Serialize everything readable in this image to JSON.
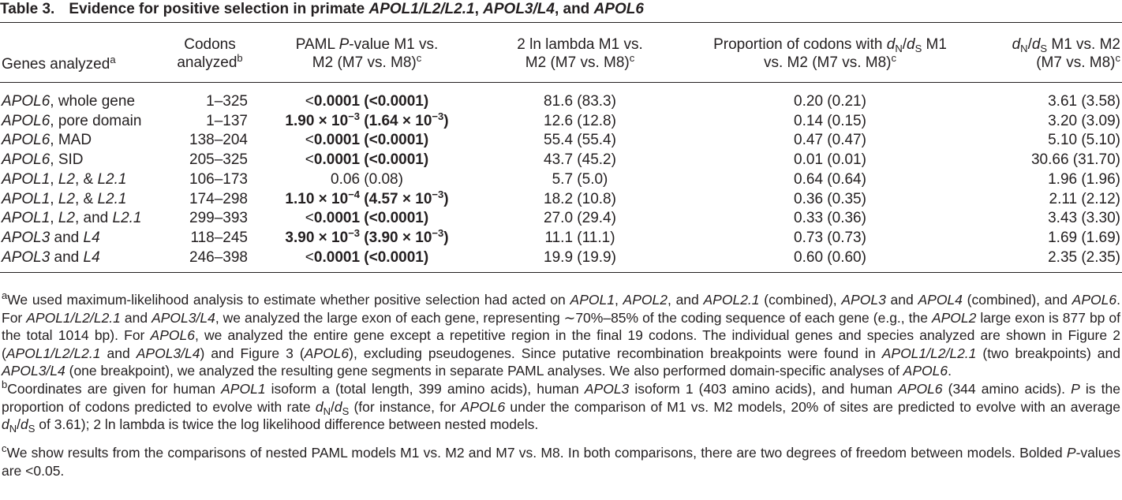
{
  "table": {
    "label": "Table 3.",
    "title_parts": [
      "Evidence for positive selection in primate ",
      "APOL1/L2/L2.1",
      ", ",
      "APOL3/L4",
      ", and ",
      "APOL6"
    ],
    "headers": {
      "genes": "Genes analyzed",
      "genes_note": "a",
      "codons_l1": "Codons",
      "codons_l2": "analyzed",
      "codons_note": "b",
      "pval_l1a": "PAML ",
      "pval_l1b": "P",
      "pval_l1c": "-value M1 vs.",
      "pval_l2": "M2 (M7 vs. M8)",
      "pval_note": "c",
      "lambda_l1": "2 ln lambda M1 vs.",
      "lambda_l2": "M2 (M7 vs. M8)",
      "lambda_note": "c",
      "prop_l1a": "Proportion of codons with ",
      "prop_l1b": "d",
      "prop_l1c": "N",
      "prop_l1d": "/",
      "prop_l1e": "d",
      "prop_l1f": "S",
      "prop_l1g": " M1",
      "prop_l2": "vs. M2 (M7 vs. M8)",
      "prop_note": "c",
      "dnds_l1a": "d",
      "dnds_l1b": "N",
      "dnds_l1c": "/",
      "dnds_l1d": "d",
      "dnds_l1e": "S",
      "dnds_l1f": " M1 vs. M2",
      "dnds_l2": "(M7 vs. M8)",
      "dnds_note": "c"
    },
    "rows": [
      {
        "gene_i": "APOL6",
        "gene_rest": ", whole gene",
        "codons": "1–325",
        "p_lt": "<",
        "p_a": "0.0001",
        "p_mid": " (<",
        "p_b": "0.0001",
        "p_end": ")",
        "lambda": "81.6 (83.3)",
        "prop": "0.20 (0.21)",
        "dnds": "3.61 (3.58)"
      },
      {
        "gene_i": "APOL6",
        "gene_rest": ", pore domain",
        "codons": "1–137",
        "p_sci": true,
        "p_m1": "1.90 × 10",
        "p_e1": "−3",
        "p_m2": " (1.64 × 10",
        "p_e2": "−3",
        "p_close": ")",
        "lambda": "12.6 (12.8)",
        "prop": "0.14 (0.15)",
        "dnds": "3.20 (3.09)"
      },
      {
        "gene_i": "APOL6",
        "gene_rest": ", MAD",
        "codons": "138–204",
        "p_lt": "<",
        "p_a": "0.0001",
        "p_mid": " (<",
        "p_b": "0.0001",
        "p_end": ")",
        "lambda": "55.4 (55.4)",
        "prop": "0.47 (0.47)",
        "dnds": "5.10 (5.10)"
      },
      {
        "gene_i": "APOL6",
        "gene_rest": ", SID",
        "codons": "205–325",
        "p_lt": "<",
        "p_a": "0.0001",
        "p_mid": " (<",
        "p_b": "0.0001",
        "p_end": ")",
        "lambda": "43.7 (45.2)",
        "prop": "0.01 (0.01)",
        "dnds": "30.66 (31.70)"
      },
      {
        "gene_i": "APOL1",
        "gene_rest": ", ",
        "gene_i2": "L2",
        "gene_rest2": ", & ",
        "gene_i3": "L2.1",
        "codons": "106–173",
        "p_plain": "0.06 (0.08)",
        "lambda": "5.7 (5.0)",
        "prop": "0.64 (0.64)",
        "dnds": "1.96 (1.96)"
      },
      {
        "gene_i": "APOL1",
        "gene_rest": ", ",
        "gene_i2": "L2",
        "gene_rest2": ", & ",
        "gene_i3": "L2.1",
        "codons": "174–298",
        "p_sci": true,
        "p_m1": "1.10 × 10",
        "p_e1": "−4",
        "p_m2": " (4.57 × 10",
        "p_e2": "−3",
        "p_close": ")",
        "lambda": "18.2 (10.8)",
        "prop": "0.36 (0.35)",
        "dnds": "2.11 (2.12)"
      },
      {
        "gene_i": "APOL1",
        "gene_rest": ", ",
        "gene_i2": "L2",
        "gene_rest2": ", and ",
        "gene_i3": "L2.1",
        "codons": "299–393",
        "p_lt": "<",
        "p_a": "0.0001",
        "p_mid": " (<",
        "p_b": "0.0001",
        "p_end": ")",
        "lambda": "27.0 (29.4)",
        "prop": "0.33 (0.36)",
        "dnds": "3.43 (3.30)"
      },
      {
        "gene_i": "APOL3",
        "gene_rest": " and ",
        "gene_i2": "L4",
        "codons": "118–245",
        "p_sci": true,
        "p_m1": "3.90 × 10",
        "p_e1": "−3",
        "p_m2": " (3.90 × 10",
        "p_e2": "−3",
        "p_close": ")",
        "lambda": "11.1 (11.1)",
        "prop": "0.73 (0.73)",
        "dnds": "1.69 (1.69)"
      },
      {
        "gene_i": "APOL3",
        "gene_rest": " and ",
        "gene_i2": "L4",
        "codons": "246–398",
        "p_lt": "<",
        "p_a": "0.0001",
        "p_mid": " (<",
        "p_b": "0.0001",
        "p_end": ")",
        "lambda": "19.9 (19.9)",
        "prop": "0.60 (0.60)",
        "dnds": "2.35 (2.35)"
      }
    ]
  },
  "footnotes": {
    "a": {
      "mark": "a",
      "segments": [
        [
          "We used maximum-likelihood analysis to estimate whether positive selection had acted on ",
          false
        ],
        [
          "APOL1",
          true
        ],
        [
          ", ",
          false
        ],
        [
          "APOL2",
          true
        ],
        [
          ", and ",
          false
        ],
        [
          "APOL2.1",
          true
        ],
        [
          " (combined), ",
          false
        ],
        [
          "APOL3",
          true
        ],
        [
          " and ",
          false
        ],
        [
          "APOL4",
          true
        ],
        [
          " (combined), and ",
          false
        ],
        [
          "APOL6",
          true
        ],
        [
          ". For ",
          false
        ],
        [
          "APOL1/L2/L2.1",
          true
        ],
        [
          " and ",
          false
        ],
        [
          "APOL3/L4",
          true
        ],
        [
          ", we analyzed the large exon of each gene, representing ∼70%–85% of the coding sequence of each gene (e.g., the ",
          false
        ],
        [
          "APOL2",
          true
        ],
        [
          " large exon is 877 bp of the total 1014 bp). For ",
          false
        ],
        [
          "APOL6",
          true
        ],
        [
          ", we analyzed the entire gene except a repetitive region in the final 19 codons. The individual genes and species analyzed are shown in Figure 2 (",
          false
        ],
        [
          "APOL1/L2/L2.1",
          true
        ],
        [
          " and ",
          false
        ],
        [
          "APOL3/L4",
          true
        ],
        [
          ") and Figure 3 (",
          false
        ],
        [
          "APOL6",
          true
        ],
        [
          "), excluding pseudogenes. Since putative recombination breakpoints were found in ",
          false
        ],
        [
          "APOL1/L2/L2.1",
          true
        ],
        [
          " (two breakpoints) and ",
          false
        ],
        [
          "APOL3/L4",
          true
        ],
        [
          " (one breakpoint), we analyzed the resulting gene segments in separate PAML analyses. We also performed domain-specific analyses of ",
          false
        ],
        [
          "APOL6",
          true
        ],
        [
          ".",
          false
        ]
      ]
    },
    "b": {
      "mark": "b",
      "segments": [
        [
          "Coordinates are given for human ",
          false
        ],
        [
          "APOL1",
          true
        ],
        [
          " isoform a (total length, 399 amino acids), human ",
          false
        ],
        [
          "APOL3",
          true
        ],
        [
          " isoform 1 (403 amino acids), and human ",
          false
        ],
        [
          "APOL6",
          true
        ],
        [
          " (344 amino acids). ",
          false
        ],
        [
          "P",
          true
        ],
        [
          " is the proportion of codons predicted to evolve with rate ",
          false
        ],
        [
          "d",
          true
        ],
        [
          "N",
          "sub"
        ],
        [
          "/",
          false
        ],
        [
          "d",
          true
        ],
        [
          "S",
          "sub"
        ],
        [
          " (for instance, for ",
          false
        ],
        [
          "APOL6",
          true
        ],
        [
          " under the comparison of M1 vs. M2 models, 20% of sites are predicted to evolve with an average ",
          false
        ],
        [
          "d",
          true
        ],
        [
          "N",
          "sub"
        ],
        [
          "/",
          false
        ],
        [
          "d",
          true
        ],
        [
          "S",
          "sub"
        ],
        [
          " of 3.61); 2 ln lambda is twice the log likelihood difference between nested models.",
          false
        ]
      ]
    },
    "c": {
      "mark": "c",
      "segments": [
        [
          "We show results from the comparisons of nested PAML models M1 vs. M2 and M7 vs. M8. In both comparisons, there are two degrees of freedom between models. Bolded ",
          false
        ],
        [
          "P",
          true
        ],
        [
          "-values are <0.05.",
          false
        ]
      ]
    }
  }
}
